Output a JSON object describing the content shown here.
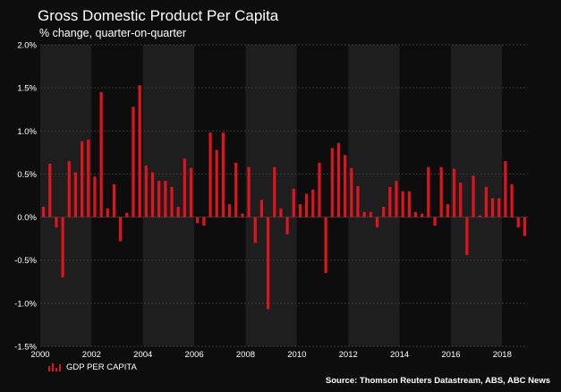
{
  "header": {
    "title": "Gross Domestic Product Per Capita",
    "subtitle": "% change, quarter-on-quarter"
  },
  "legend": {
    "label": "GDP PER CAPITA"
  },
  "source": "Source: Thomson Reuters Datastream, ABS, ABC News",
  "colors": {
    "bar": "#e0141e",
    "background": "#0d0d0d",
    "band": "#1e1e1e",
    "gridline": "#3a3a3a"
  },
  "chart_data": {
    "type": "bar",
    "title": "Gross Domestic Product Per Capita",
    "subtitle": "% change, quarter-on-quarter",
    "xlabel": "",
    "ylabel": "",
    "ylim": [
      -1.5,
      2.0
    ],
    "xlim": [
      2000,
      2019
    ],
    "x_ticks": [
      2000,
      2002,
      2004,
      2006,
      2008,
      2010,
      2012,
      2014,
      2016,
      2018
    ],
    "y_ticks": [
      -1.5,
      -1.0,
      -0.5,
      0.0,
      0.5,
      1.0,
      1.5,
      2.0
    ],
    "y_tick_labels": [
      "-1.5%",
      "-1.0%",
      "-0.5%",
      "0.0%",
      "0.5%",
      "1.0%",
      "1.5%",
      "2.0%"
    ],
    "grid": true,
    "legend_position": "bottom-left",
    "series": [
      {
        "name": "GDP PER CAPITA",
        "start": "2000-Q1",
        "frequency": "quarterly",
        "values": [
          0.12,
          0.62,
          -0.12,
          -0.7,
          0.65,
          0.52,
          0.88,
          0.9,
          0.47,
          1.45,
          0.1,
          0.38,
          -0.28,
          0.05,
          1.28,
          1.53,
          0.6,
          0.52,
          0.42,
          0.42,
          0.35,
          0.12,
          0.68,
          0.57,
          -0.07,
          -0.1,
          0.98,
          0.78,
          0.98,
          0.15,
          0.63,
          0.04,
          0.58,
          -0.3,
          0.2,
          -1.07,
          0.58,
          0.1,
          -0.2,
          0.33,
          0.15,
          0.27,
          0.32,
          0.63,
          -0.65,
          0.8,
          0.86,
          0.72,
          0.57,
          0.36,
          0.06,
          0.06,
          -0.12,
          0.12,
          0.35,
          0.42,
          0.3,
          0.3,
          0.06,
          0.04,
          0.58,
          -0.1,
          0.58,
          0.15,
          0.56,
          0.4,
          -0.44,
          0.48,
          0.02,
          0.35,
          0.22,
          0.22,
          0.65,
          0.38,
          -0.12,
          -0.22
        ]
      }
    ]
  }
}
